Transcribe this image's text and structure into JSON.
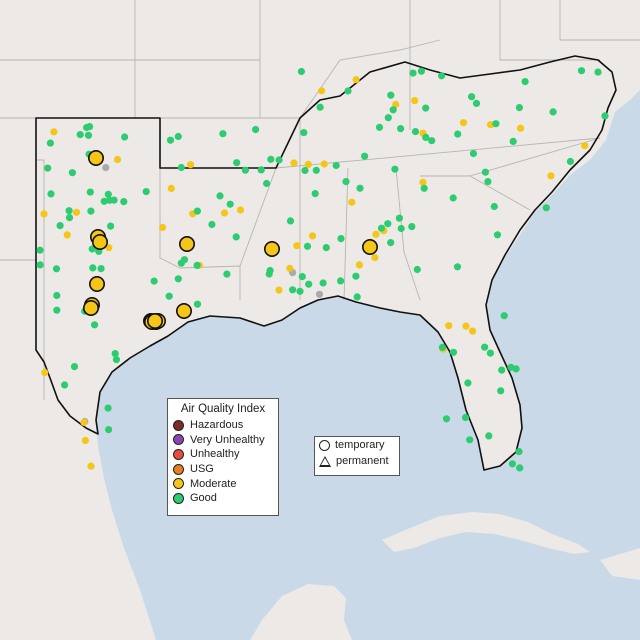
{
  "colors": {
    "water": "#c9d9e8",
    "land": "#ece9e6",
    "land_mexico": "#e4e1dc",
    "state_border": "#b9b4b0",
    "region_outline": "#111111",
    "good": "#2ecc71",
    "moderate": "#f5c518",
    "usg": "#e67e22",
    "unhealthy": "#e74c3c",
    "very_unhealthy": "#8e44ad",
    "hazardous": "#7b2b25",
    "no_data": "#aaaaaa"
  },
  "legend_aqi": {
    "title": "Air Quality Index",
    "items": [
      {
        "label": "Hazardous",
        "color": "#7b2b25"
      },
      {
        "label": "Very Unhealthy",
        "color": "#8e44ad"
      },
      {
        "label": "Unhealthy",
        "color": "#e74c3c"
      },
      {
        "label": "USG",
        "color": "#e67e22"
      },
      {
        "label": "Moderate",
        "color": "#f5c518"
      },
      {
        "label": "Good",
        "color": "#2ecc71"
      }
    ]
  },
  "legend_type": {
    "items": [
      {
        "label": "temporary",
        "shape": "circle"
      },
      {
        "label": "permanent",
        "shape": "triangle"
      }
    ]
  },
  "monitors": {
    "moderate_temporary_large": {
      "category": "Moderate",
      "type": "temporary",
      "count": 15
    },
    "small_markers": {
      "good_count": 150,
      "moderate_count": 45,
      "no_data_count": 4
    }
  }
}
